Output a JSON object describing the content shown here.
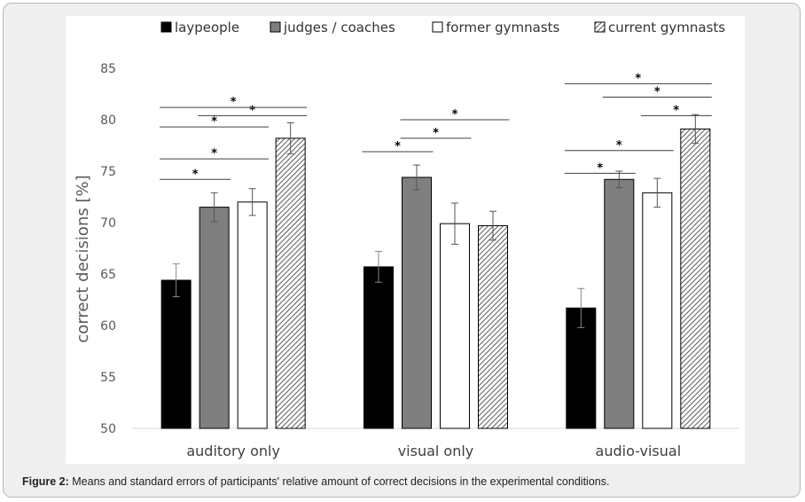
{
  "caption": {
    "label": "Figure 2:",
    "text": " Means and standard errors of participants' relative amount of correct decisions in the experimental conditions."
  },
  "chart_data": {
    "type": "bar",
    "title": "",
    "xlabel": "",
    "ylabel": "correct decisions [%]",
    "ylim": [
      50,
      85
    ],
    "yticks": [
      50,
      55,
      60,
      65,
      70,
      75,
      80,
      85
    ],
    "grid": false,
    "legend_position": "top",
    "categories": [
      "auditory only",
      "visual only",
      "audio-visual"
    ],
    "series": [
      {
        "name": "laypeople",
        "fill": "black",
        "values": [
          64.4,
          65.7,
          61.7
        ],
        "errors": [
          1.6,
          1.5,
          1.9
        ]
      },
      {
        "name": "judges / coaches",
        "fill": "gray",
        "values": [
          71.5,
          74.4,
          74.2
        ],
        "errors": [
          1.4,
          1.2,
          0.8
        ]
      },
      {
        "name": "former gymnasts",
        "fill": "white",
        "values": [
          72.0,
          69.9,
          72.9
        ],
        "errors": [
          1.3,
          2.0,
          1.4
        ]
      },
      {
        "name": "current gymnasts",
        "fill": "hatched",
        "values": [
          78.2,
          69.7,
          79.1
        ],
        "errors": [
          1.5,
          1.4,
          1.4
        ]
      }
    ],
    "colors": {
      "black": "#000000",
      "gray": "#7f7f7f",
      "white": "#ffffff",
      "hatch": "#333333",
      "axis": "#d9d9d9",
      "text": "#595959"
    },
    "significance_marker": "*",
    "significance": [
      {
        "category": 0,
        "from": 0,
        "to": 2,
        "level": 79.3
      },
      {
        "category": 0,
        "from": 1,
        "to": 3,
        "level": 80.4
      },
      {
        "category": 0,
        "from": 0,
        "to": 3,
        "level": 81.2
      },
      {
        "category": 0,
        "from": 0,
        "to": 1,
        "level": 74.2
      },
      {
        "category": 0,
        "from": 0,
        "to": 2,
        "level": 76.2
      },
      {
        "category": 1,
        "from": 0,
        "to": 1,
        "level": 76.9
      },
      {
        "category": 1,
        "from": 1,
        "to": 2,
        "level": 78.2
      },
      {
        "category": 1,
        "from": 1,
        "to": 3,
        "level": 80.0
      },
      {
        "category": 2,
        "from": 0,
        "to": 1,
        "level": 74.8
      },
      {
        "category": 2,
        "from": 0,
        "to": 2,
        "level": 77.0
      },
      {
        "category": 2,
        "from": 2,
        "to": 3,
        "level": 80.4
      },
      {
        "category": 2,
        "from": 1,
        "to": 3,
        "level": 82.2
      },
      {
        "category": 2,
        "from": 0,
        "to": 3,
        "level": 83.5
      }
    ]
  }
}
